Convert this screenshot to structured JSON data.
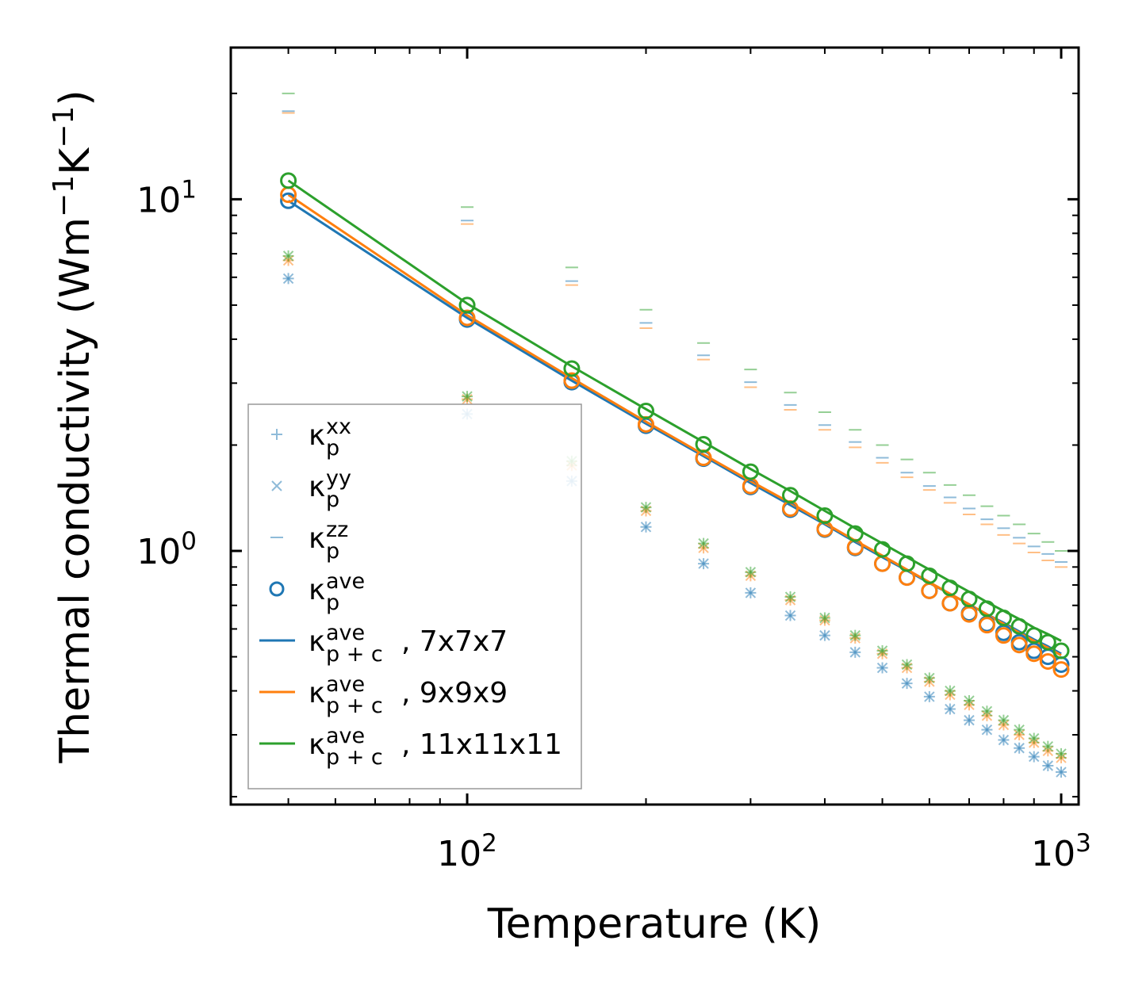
{
  "chart_data": {
    "type": "line",
    "xlabel": "Temperature (K)",
    "ylabel": "Thermal conductivity (Wm",
    "ylabel_unit_parts": [
      "−1",
      "K",
      "−1",
      ")"
    ],
    "xscale": "log",
    "yscale": "log",
    "xlim": [
      40,
      1070
    ],
    "ylim": [
      0.19,
      27
    ],
    "x_ticks": [
      {
        "value": 100,
        "base": "10",
        "exp": "2"
      },
      {
        "value": 1000,
        "base": "10",
        "exp": "3"
      }
    ],
    "y_ticks": [
      {
        "value": 1,
        "base": "10",
        "exp": "0"
      },
      {
        "value": 10,
        "base": "10",
        "exp": "1"
      }
    ],
    "colors": {
      "7x7x7": "#1f77b4",
      "9x9x9": "#ff7f0e",
      "11x11x11": "#2ca02c"
    },
    "x": [
      50,
      100,
      150,
      200,
      250,
      300,
      350,
      400,
      450,
      500,
      550,
      600,
      650,
      700,
      750,
      800,
      850,
      900,
      950,
      1000
    ],
    "series": [
      {
        "name": "7x7x7",
        "color": "#1f77b4",
        "kappa_xx": [
          5.95,
          2.45,
          1.58,
          1.17,
          0.92,
          0.76,
          0.655,
          0.575,
          0.515,
          0.465,
          0.42,
          0.385,
          0.355,
          0.33,
          0.31,
          0.29,
          0.275,
          0.26,
          0.245,
          0.235
        ],
        "kappa_yy": [
          5.95,
          2.45,
          1.58,
          1.17,
          0.92,
          0.76,
          0.655,
          0.575,
          0.515,
          0.465,
          0.42,
          0.385,
          0.355,
          0.33,
          0.31,
          0.29,
          0.275,
          0.26,
          0.245,
          0.235
        ],
        "kappa_zz": [
          17.8,
          8.7,
          5.85,
          4.45,
          3.6,
          3.02,
          2.6,
          2.28,
          2.04,
          1.84,
          1.67,
          1.53,
          1.42,
          1.32,
          1.23,
          1.16,
          1.09,
          1.03,
          0.98,
          0.93
        ],
        "kappa_ave": [
          9.9,
          4.55,
          3.02,
          2.27,
          1.83,
          1.52,
          1.31,
          1.15,
          1.02,
          0.92,
          0.84,
          0.77,
          0.71,
          0.665,
          0.62,
          0.585,
          0.55,
          0.52,
          0.5,
          0.475
        ],
        "kappa_pc_ave": [
          9.9,
          4.6,
          3.05,
          2.3,
          1.86,
          1.56,
          1.35,
          1.19,
          1.06,
          0.96,
          0.88,
          0.81,
          0.755,
          0.705,
          0.66,
          0.625,
          0.59,
          0.56,
          0.535,
          0.51
        ]
      },
      {
        "name": "9x9x9",
        "color": "#ff7f0e",
        "kappa_xx": [
          6.7,
          2.7,
          1.75,
          1.3,
          1.02,
          0.85,
          0.725,
          0.635,
          0.565,
          0.51,
          0.465,
          0.425,
          0.39,
          0.365,
          0.34,
          0.32,
          0.3,
          0.285,
          0.27,
          0.258
        ],
        "kappa_yy": [
          6.7,
          2.7,
          1.75,
          1.3,
          1.02,
          0.85,
          0.725,
          0.635,
          0.565,
          0.51,
          0.465,
          0.425,
          0.39,
          0.365,
          0.34,
          0.32,
          0.3,
          0.285,
          0.27,
          0.258
        ],
        "kappa_zz": [
          17.6,
          8.5,
          5.7,
          4.3,
          3.5,
          2.92,
          2.52,
          2.21,
          1.97,
          1.78,
          1.62,
          1.49,
          1.37,
          1.27,
          1.19,
          1.11,
          1.05,
          0.99,
          0.94,
          0.9
        ],
        "kappa_ave": [
          10.3,
          4.6,
          3.05,
          2.29,
          1.84,
          1.53,
          1.32,
          1.155,
          1.025,
          0.92,
          0.84,
          0.77,
          0.71,
          0.66,
          0.615,
          0.575,
          0.54,
          0.51,
          0.485,
          0.46
        ],
        "kappa_pc_ave": [
          10.3,
          4.68,
          3.1,
          2.33,
          1.88,
          1.58,
          1.37,
          1.2,
          1.07,
          0.97,
          0.885,
          0.815,
          0.755,
          0.705,
          0.66,
          0.62,
          0.585,
          0.555,
          0.53,
          0.505
        ]
      },
      {
        "name": "11x11x11",
        "color": "#2ca02c",
        "kappa_xx": [
          6.9,
          2.75,
          1.8,
          1.33,
          1.05,
          0.87,
          0.74,
          0.645,
          0.575,
          0.52,
          0.475,
          0.435,
          0.4,
          0.375,
          0.35,
          0.33,
          0.31,
          0.293,
          0.278,
          0.265
        ],
        "kappa_yy": [
          6.9,
          2.75,
          1.8,
          1.33,
          1.05,
          0.87,
          0.74,
          0.645,
          0.575,
          0.52,
          0.475,
          0.435,
          0.4,
          0.375,
          0.35,
          0.33,
          0.31,
          0.293,
          0.278,
          0.265
        ],
        "kappa_zz": [
          20.0,
          9.5,
          6.4,
          4.85,
          3.9,
          3.28,
          2.82,
          2.48,
          2.21,
          2.0,
          1.82,
          1.67,
          1.54,
          1.44,
          1.34,
          1.26,
          1.19,
          1.12,
          1.06,
          1.0
        ],
        "kappa_ave": [
          11.3,
          5.0,
          3.3,
          2.5,
          2.01,
          1.68,
          1.44,
          1.26,
          1.12,
          1.01,
          0.92,
          0.85,
          0.785,
          0.73,
          0.685,
          0.645,
          0.61,
          0.575,
          0.55,
          0.52
        ],
        "kappa_pc_ave": [
          11.3,
          5.05,
          3.35,
          2.53,
          2.04,
          1.71,
          1.48,
          1.3,
          1.16,
          1.05,
          0.96,
          0.885,
          0.82,
          0.765,
          0.715,
          0.675,
          0.64,
          0.605,
          0.58,
          0.555
        ]
      }
    ],
    "legend": {
      "position": "bottom-left",
      "entries": [
        {
          "marker": "plus",
          "symbol": "κ",
          "sup": "xx",
          "sub": "p",
          "suffix": ""
        },
        {
          "marker": "x",
          "symbol": "κ",
          "sup": "yy",
          "sub": "p",
          "suffix": ""
        },
        {
          "marker": "hline",
          "symbol": "κ",
          "sup": "zz",
          "sub": "p",
          "suffix": ""
        },
        {
          "marker": "circle",
          "symbol": "κ",
          "sup": "ave",
          "sub": "p",
          "suffix": ""
        },
        {
          "marker": "line",
          "color_key": "7x7x7",
          "symbol": "κ",
          "sup": "ave",
          "sub": "p + c",
          "suffix": ", 7x7x7"
        },
        {
          "marker": "line",
          "color_key": "9x9x9",
          "symbol": "κ",
          "sup": "ave",
          "sub": "p + c",
          "suffix": ", 9x9x9"
        },
        {
          "marker": "line",
          "color_key": "11x11x11",
          "symbol": "κ",
          "sup": "ave",
          "sub": "p + c",
          "suffix": ", 11x11x11"
        }
      ]
    }
  }
}
